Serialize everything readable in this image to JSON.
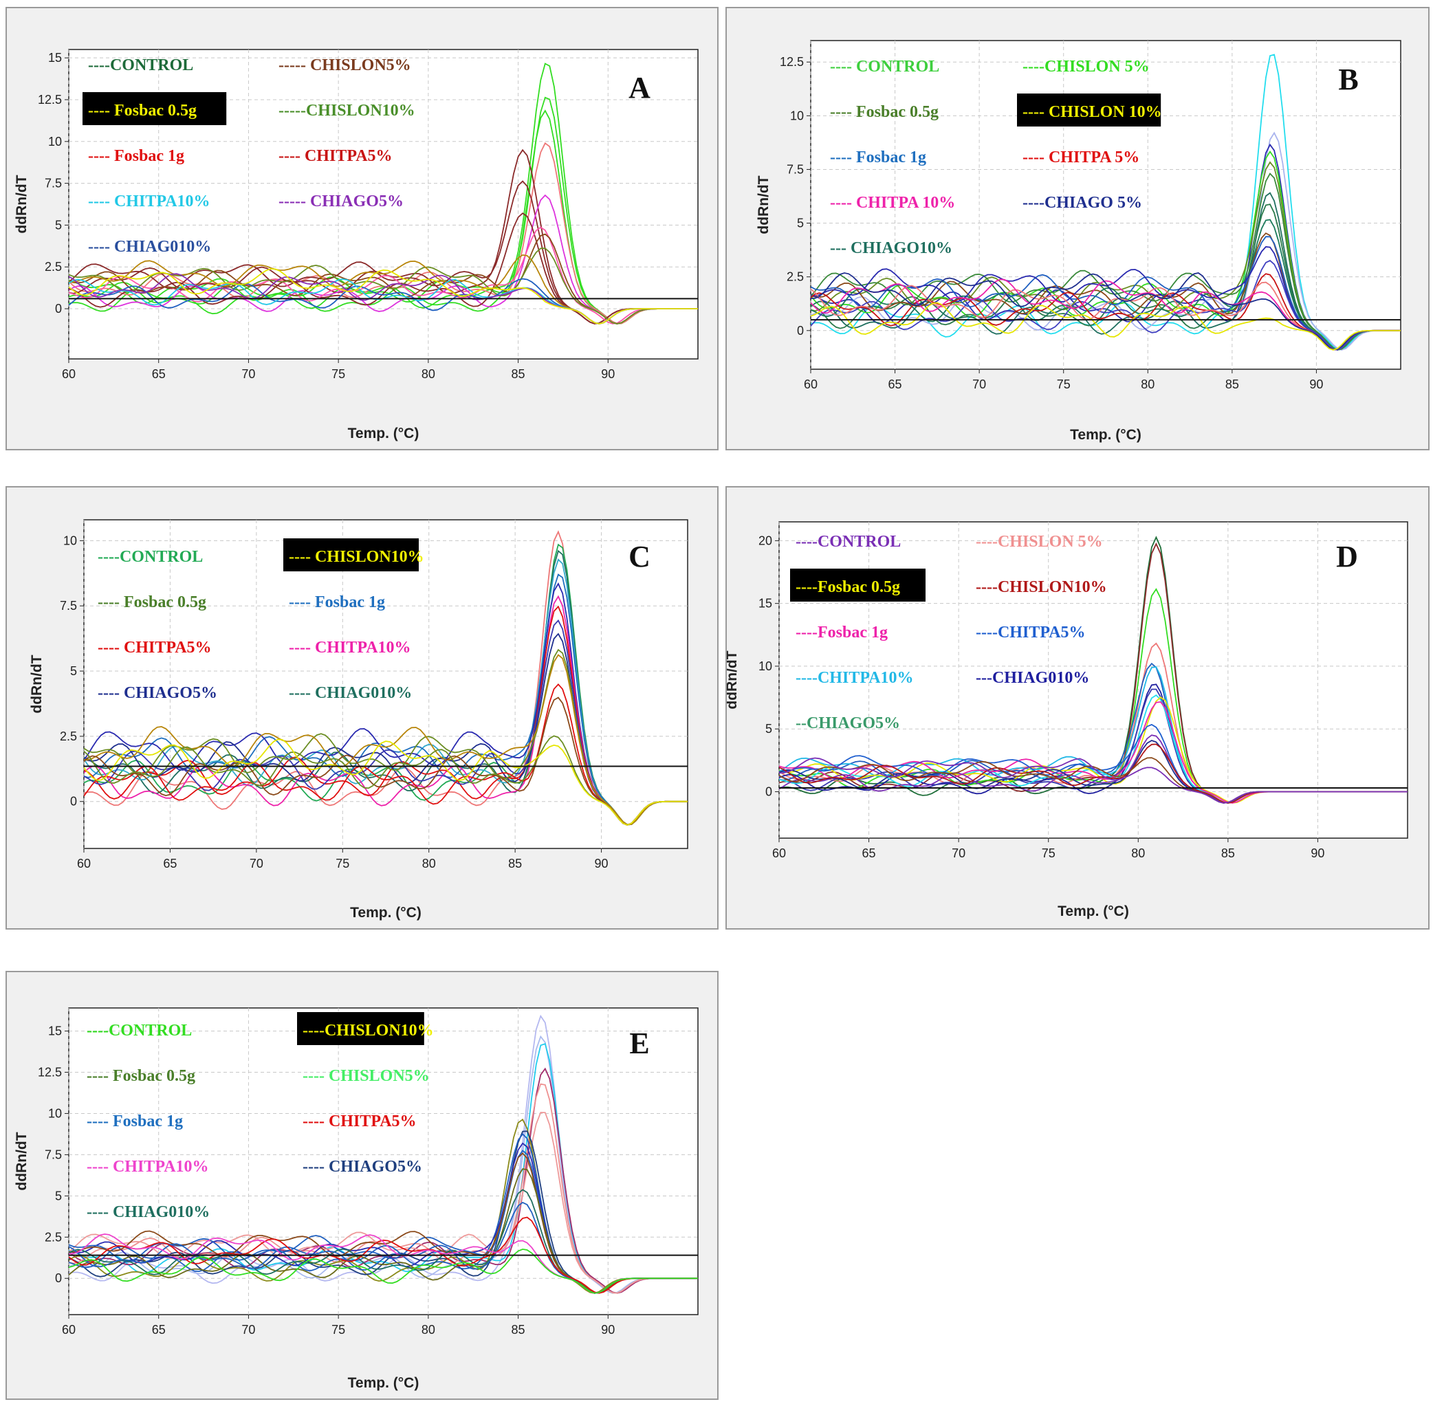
{
  "chart_data": [
    {
      "type": "line",
      "letter": "A",
      "xlabel": "Temp. (°C)",
      "ylabel": "ddRn/dT",
      "xlim": [
        60,
        95
      ],
      "ylim": [
        -3,
        15.5
      ],
      "xticks": [
        "60",
        "65",
        "70",
        "75",
        "80",
        "85",
        "90"
      ],
      "yticks": [
        "0",
        "2.5",
        "5",
        "7.5",
        "10",
        "12.5",
        "15"
      ],
      "threshold": 0.6,
      "legend": [
        {
          "label": "----CONTROL",
          "color": "#1e6b3a",
          "highlight": false
        },
        {
          "label": "----- CHISLON5%",
          "color": "#7a3b1e",
          "highlight": false
        },
        {
          "label": "---- Fosbac 0.5g",
          "color": "#f0f000",
          "highlight": true
        },
        {
          "label": "-----CHISLON10%",
          "color": "#4a8f2a",
          "highlight": false
        },
        {
          "label": "---- Fosbac 1g",
          "color": "#e01010",
          "highlight": false
        },
        {
          "label": "---- CHITPA5%",
          "color": "#c81414",
          "highlight": false
        },
        {
          "label": "---- CHITPA10%",
          "color": "#22c8e6",
          "highlight": false
        },
        {
          "label": "----- CHIAGO5%",
          "color": "#8a2fb5",
          "highlight": false
        },
        {
          "label": "---- CHIAG010%",
          "color": "#2a4f9e",
          "highlight": false
        }
      ],
      "series_peaks": [
        {
          "color": "#33dd22",
          "peak_x": 86.6,
          "peak_y": 14.6
        },
        {
          "color": "#33dd22",
          "peak_x": 86.6,
          "peak_y": 12.6
        },
        {
          "color": "#33dd22",
          "peak_x": 86.5,
          "peak_y": 11.6
        },
        {
          "color": "#ee7777",
          "peak_x": 86.6,
          "peak_y": 9.5
        },
        {
          "color": "#8b2a2a",
          "peak_x": 85.3,
          "peak_y": 9.0
        },
        {
          "color": "#8b2a2a",
          "peak_x": 85.3,
          "peak_y": 7.2
        },
        {
          "color": "#dd33dd",
          "peak_x": 86.5,
          "peak_y": 6.7
        },
        {
          "color": "#8b2a2a",
          "peak_x": 85.3,
          "peak_y": 5.5
        },
        {
          "color": "#ff55aa",
          "peak_x": 86.3,
          "peak_y": 4.6
        },
        {
          "color": "#8b4a1a",
          "peak_x": 86.5,
          "peak_y": 4.2
        },
        {
          "color": "#6b8e23",
          "peak_x": 86.5,
          "peak_y": 3.2
        },
        {
          "color": "#b8860b",
          "peak_x": 85.5,
          "peak_y": 2.6
        },
        {
          "color": "#2060c0",
          "peak_x": 85.5,
          "peak_y": 1.6
        },
        {
          "color": "#22c8e6",
          "peak_x": 85.5,
          "peak_y": 1.2
        },
        {
          "color": "#8a2fb5",
          "peak_x": 85.5,
          "peak_y": 1.0
        },
        {
          "color": "#e6e600",
          "peak_x": 85.5,
          "peak_y": 0.8
        }
      ]
    },
    {
      "type": "line",
      "letter": "B",
      "xlabel": "Temp. (°C)",
      "ylabel": "ddRn/dT",
      "xlim": [
        60,
        95
      ],
      "ylim": [
        -1.8,
        13.5
      ],
      "xticks": [
        "60",
        "65",
        "70",
        "75",
        "80",
        "85",
        "90"
      ],
      "yticks": [
        "0",
        "2.5",
        "5",
        "7.5",
        "10",
        "12.5"
      ],
      "threshold": 0.5,
      "legend": [
        {
          "label": "---- CONTROL",
          "color": "#3ecf3e",
          "highlight": false
        },
        {
          "label": "----CHISLON 5%",
          "color": "#33dd22",
          "highlight": false
        },
        {
          "label": "---- Fosbac 0.5g",
          "color": "#4a7f2a",
          "highlight": false
        },
        {
          "label": "---- CHISLON 10%",
          "color": "#f0f000",
          "highlight": true
        },
        {
          "label": "---- Fosbac 1g",
          "color": "#1f6fbf",
          "highlight": false
        },
        {
          "label": "---- CHITPA 5%",
          "color": "#e01010",
          "highlight": false
        },
        {
          "label": "---- CHITPA 10%",
          "color": "#ee22aa",
          "highlight": false
        },
        {
          "label": "----CHIAGO 5%",
          "color": "#1f2f8f",
          "highlight": false
        },
        {
          "label": "--- CHIAGO10%",
          "color": "#1f6f5f",
          "highlight": false
        }
      ],
      "series_peaks": [
        {
          "color": "#22ddee",
          "peak_x": 87.4,
          "peak_y": 12.8
        },
        {
          "color": "#aab4ee",
          "peak_x": 87.5,
          "peak_y": 9.1
        },
        {
          "color": "#2a2ab0",
          "peak_x": 87.3,
          "peak_y": 8.4
        },
        {
          "color": "#33dd22",
          "peak_x": 87.3,
          "peak_y": 8.0
        },
        {
          "color": "#6b8e23",
          "peak_x": 87.3,
          "peak_y": 7.6
        },
        {
          "color": "#3a8a3a",
          "peak_x": 87.3,
          "peak_y": 7.0
        },
        {
          "color": "#1f6f5f",
          "peak_x": 87.2,
          "peak_y": 6.2
        },
        {
          "color": "#2a7a4a",
          "peak_x": 87.2,
          "peak_y": 5.6
        },
        {
          "color": "#1a7a5a",
          "peak_x": 87.2,
          "peak_y": 5.0
        },
        {
          "color": "#8b4a1a",
          "peak_x": 87.1,
          "peak_y": 4.3
        },
        {
          "color": "#2060c0",
          "peak_x": 87.2,
          "peak_y": 4.0
        },
        {
          "color": "#2a2ab0",
          "peak_x": 87.2,
          "peak_y": 3.5
        },
        {
          "color": "#4040c0",
          "peak_x": 87.2,
          "peak_y": 3.2
        },
        {
          "color": "#c81414",
          "peak_x": 87.1,
          "peak_y": 2.4
        },
        {
          "color": "#ee7777",
          "peak_x": 87.1,
          "peak_y": 1.8
        },
        {
          "color": "#ee22aa",
          "peak_x": 87.1,
          "peak_y": 1.4
        },
        {
          "color": "#1f2f8f",
          "peak_x": 87.1,
          "peak_y": 1.2
        },
        {
          "color": "#e6e600",
          "peak_x": 87.0,
          "peak_y": 0.5
        }
      ]
    },
    {
      "type": "line",
      "letter": "C",
      "xlabel": "Temp. (°C)",
      "ylabel": "ddRn/dT",
      "xlim": [
        60,
        95
      ],
      "ylim": [
        -1.8,
        10.8
      ],
      "xticks": [
        "60",
        "65",
        "70",
        "75",
        "80",
        "85",
        "90"
      ],
      "yticks": [
        "0",
        "2.5",
        "5",
        "7.5",
        "10"
      ],
      "threshold": 1.35,
      "legend": [
        {
          "label": "----CONTROL",
          "color": "#22aa55",
          "highlight": false
        },
        {
          "label": "---- CHISLON10%",
          "color": "#f0f000",
          "highlight": true
        },
        {
          "label": "---- Fosbac 0.5g",
          "color": "#4a7f2a",
          "highlight": false
        },
        {
          "label": "---- Fosbac 1g",
          "color": "#1f6fbf",
          "highlight": false
        },
        {
          "label": "---- CHITPA5%",
          "color": "#e01010",
          "highlight": false
        },
        {
          "label": "---- CHITPA10%",
          "color": "#ee22aa",
          "highlight": false
        },
        {
          "label": "---- CHIAGO5%",
          "color": "#1f2f8f",
          "highlight": false
        },
        {
          "label": "---- CHIAG010%",
          "color": "#1f6f5f",
          "highlight": false
        }
      ],
      "series_peaks": [
        {
          "color": "#ee7777",
          "peak_x": 87.5,
          "peak_y": 10.2
        },
        {
          "color": "#22aa55",
          "peak_x": 87.6,
          "peak_y": 9.8
        },
        {
          "color": "#1f6f5f",
          "peak_x": 87.6,
          "peak_y": 9.4
        },
        {
          "color": "#33aacc",
          "peak_x": 87.6,
          "peak_y": 9.0
        },
        {
          "color": "#1f6fbf",
          "peak_x": 87.6,
          "peak_y": 8.5
        },
        {
          "color": "#2a2ab0",
          "peak_x": 87.5,
          "peak_y": 8.0
        },
        {
          "color": "#ee22aa",
          "peak_x": 87.5,
          "peak_y": 7.6
        },
        {
          "color": "#e01010",
          "peak_x": 87.5,
          "peak_y": 7.2
        },
        {
          "color": "#3a3ab0",
          "peak_x": 87.5,
          "peak_y": 6.8
        },
        {
          "color": "#1f2f8f",
          "peak_x": 87.5,
          "peak_y": 6.2
        },
        {
          "color": "#6b8e23",
          "peak_x": 87.6,
          "peak_y": 5.4
        },
        {
          "color": "#b8860b",
          "peak_x": 87.6,
          "peak_y": 5.2
        },
        {
          "color": "#e01010",
          "peak_x": 87.5,
          "peak_y": 4.4
        },
        {
          "color": "#8b4a1a",
          "peak_x": 87.5,
          "peak_y": 3.7
        },
        {
          "color": "#6b8e23",
          "peak_x": 87.5,
          "peak_y": 2.1
        },
        {
          "color": "#e6e600",
          "peak_x": 87.5,
          "peak_y": 1.9
        }
      ]
    },
    {
      "type": "line",
      "letter": "D",
      "xlabel": "Temp. (°C)",
      "ylabel": "ddRn/dT",
      "xlim": [
        60,
        95
      ],
      "ylim": [
        -3.7,
        21.5
      ],
      "xticks": [
        "60",
        "65",
        "70",
        "75",
        "80",
        "85",
        "90"
      ],
      "yticks": [
        "0",
        "5",
        "10",
        "15",
        "20"
      ],
      "threshold": 0.3,
      "legend": [
        {
          "label": "----CONTROL",
          "color": "#7a2fb5",
          "highlight": false
        },
        {
          "label": "----CHISLON 5%",
          "color": "#f09090",
          "highlight": false
        },
        {
          "label": "----Fosbac 0.5g",
          "color": "#f0f000",
          "highlight": true
        },
        {
          "label": "----CHISLON10%",
          "color": "#b01818",
          "highlight": false
        },
        {
          "label": "----Fosbac 1g",
          "color": "#ee22aa",
          "highlight": false
        },
        {
          "label": "----CHITPA5%",
          "color": "#1f5fcf",
          "highlight": false
        },
        {
          "label": "----CHITPA10%",
          "color": "#22b8e6",
          "highlight": false
        },
        {
          "label": "---CHIAG010%",
          "color": "#1f1f9f",
          "highlight": false
        },
        {
          "label": "--CHIAGO5%",
          "color": "#3a9a6a",
          "highlight": false
        }
      ],
      "series_peaks": [
        {
          "color": "#1f6f3a",
          "peak_x": 81.0,
          "peak_y": 20.2
        },
        {
          "color": "#8b2a2a",
          "peak_x": 81.0,
          "peak_y": 19.6
        },
        {
          "color": "#33dd22",
          "peak_x": 81.0,
          "peak_y": 15.8
        },
        {
          "color": "#ee7777",
          "peak_x": 81.0,
          "peak_y": 11.5
        },
        {
          "color": "#2060c0",
          "peak_x": 80.8,
          "peak_y": 10.0
        },
        {
          "color": "#22b8e6",
          "peak_x": 80.9,
          "peak_y": 9.7
        },
        {
          "color": "#1f1f9f",
          "peak_x": 80.9,
          "peak_y": 8.4
        },
        {
          "color": "#3a3ab0",
          "peak_x": 80.9,
          "peak_y": 8.0
        },
        {
          "color": "#22ddee",
          "peak_x": 81.0,
          "peak_y": 7.5
        },
        {
          "color": "#e6e600",
          "peak_x": 81.3,
          "peak_y": 7.2
        },
        {
          "color": "#ee22aa",
          "peak_x": 81.2,
          "peak_y": 6.8
        },
        {
          "color": "#1f5fcf",
          "peak_x": 80.8,
          "peak_y": 5.0
        },
        {
          "color": "#7a2fb5",
          "peak_x": 80.8,
          "peak_y": 4.5
        },
        {
          "color": "#1f2f8f",
          "peak_x": 80.8,
          "peak_y": 3.8
        },
        {
          "color": "#b01818",
          "peak_x": 81.0,
          "peak_y": 3.4
        },
        {
          "color": "#8b4a1a",
          "peak_x": 80.8,
          "peak_y": 2.4
        },
        {
          "color": "#7a2fb5",
          "peak_x": 80.8,
          "peak_y": 1.6
        }
      ]
    },
    {
      "type": "line",
      "letter": "E",
      "xlabel": "Temp. (°C)",
      "ylabel": "ddRn/dT",
      "xlim": [
        60,
        95
      ],
      "ylim": [
        -2.2,
        16.4
      ],
      "xticks": [
        "60",
        "65",
        "70",
        "75",
        "80",
        "85",
        "90"
      ],
      "yticks": [
        "0",
        "2.5",
        "5",
        "7.5",
        "10",
        "12.5",
        "15"
      ],
      "threshold": 1.4,
      "legend": [
        {
          "label": "----CONTROL",
          "color": "#33dd22",
          "highlight": false
        },
        {
          "label": "----CHISLON10%",
          "color": "#f0f000",
          "highlight": true
        },
        {
          "label": "---- Fosbac 0.5g",
          "color": "#4a7f2a",
          "highlight": false
        },
        {
          "label": "---- CHISLON5%",
          "color": "#44ee66",
          "highlight": false
        },
        {
          "label": "---- Fosbac 1g",
          "color": "#1f6fbf",
          "highlight": false
        },
        {
          "label": "---- CHITPA5%",
          "color": "#e01010",
          "highlight": false
        },
        {
          "label": "---- CHITPA10%",
          "color": "#ee44cc",
          "highlight": false
        },
        {
          "label": "---- CHIAGO5%",
          "color": "#1f3f7f",
          "highlight": false
        },
        {
          "label": "---- CHIAG010%",
          "color": "#1f6f5f",
          "highlight": false
        }
      ],
      "series_peaks": [
        {
          "color": "#b4b8f0",
          "peak_x": 86.3,
          "peak_y": 15.8
        },
        {
          "color": "#aabbee",
          "peak_x": 86.3,
          "peak_y": 14.6
        },
        {
          "color": "#22ccee",
          "peak_x": 86.4,
          "peak_y": 14.1
        },
        {
          "color": "#a02a6a",
          "peak_x": 86.5,
          "peak_y": 12.3
        },
        {
          "color": "#ee9090",
          "peak_x": 86.4,
          "peak_y": 11.5
        },
        {
          "color": "#ee9999",
          "peak_x": 86.4,
          "peak_y": 9.9
        },
        {
          "color": "#8b8b1a",
          "peak_x": 85.2,
          "peak_y": 9.6
        },
        {
          "color": "#1f3f7f",
          "peak_x": 85.4,
          "peak_y": 8.8
        },
        {
          "color": "#2060c0",
          "peak_x": 85.3,
          "peak_y": 8.5
        },
        {
          "color": "#2a2ab0",
          "peak_x": 85.3,
          "peak_y": 8.0
        },
        {
          "color": "#2060c0",
          "peak_x": 85.3,
          "peak_y": 7.4
        },
        {
          "color": "#8b4a1a",
          "peak_x": 85.3,
          "peak_y": 7.0
        },
        {
          "color": "#6b6b1a",
          "peak_x": 85.4,
          "peak_y": 6.5
        },
        {
          "color": "#1f6f5f",
          "peak_x": 85.3,
          "peak_y": 5.3
        },
        {
          "color": "#2060c0",
          "peak_x": 85.3,
          "peak_y": 4.4
        },
        {
          "color": "#e01010",
          "peak_x": 85.5,
          "peak_y": 3.3
        },
        {
          "color": "#ee44cc",
          "peak_x": 85.3,
          "peak_y": 1.9
        },
        {
          "color": "#33dd22",
          "peak_x": 85.3,
          "peak_y": 1.7
        }
      ]
    }
  ]
}
